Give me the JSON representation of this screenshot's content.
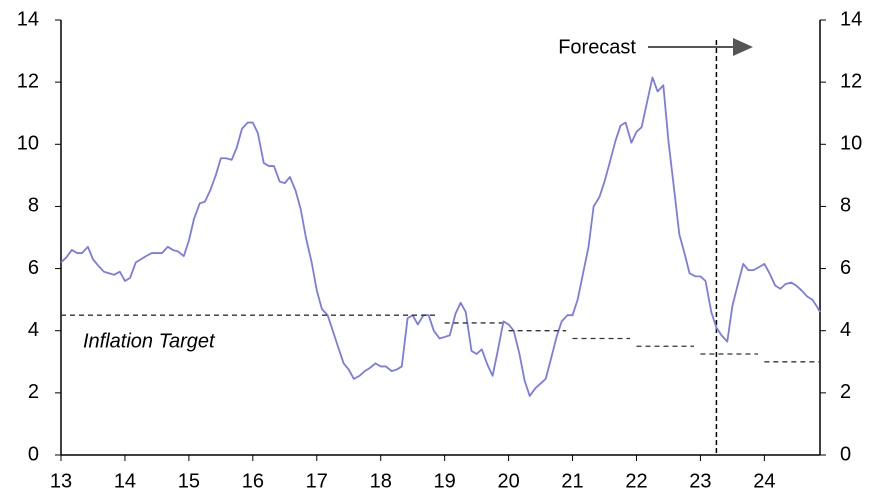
{
  "chart_data": {
    "type": "line",
    "xlim": [
      13,
      24.87
    ],
    "xticks": [
      13,
      14,
      15,
      16,
      17,
      18,
      19,
      20,
      21,
      22,
      23,
      24
    ],
    "ylim": [
      0,
      14
    ],
    "yticks": [
      0,
      2,
      4,
      6,
      8,
      10,
      12,
      14
    ],
    "y2lim": [
      0,
      14
    ],
    "y2ticks": [
      0,
      2,
      4,
      6,
      8,
      10,
      12,
      14
    ],
    "forecast_x": 23.25,
    "forecast_label": "Forecast",
    "series": [
      {
        "color": "#7b7be8",
        "x": [
          13,
          13.08,
          13.17,
          13.25,
          13.33,
          13.42,
          13.5,
          13.58,
          13.67,
          13.75,
          13.83,
          13.92,
          14,
          14.08,
          14.17,
          14.25,
          14.33,
          14.42,
          14.5,
          14.58,
          14.67,
          14.75,
          14.83,
          14.92,
          15,
          15.08,
          15.17,
          15.25,
          15.33,
          15.42,
          15.5,
          15.58,
          15.67,
          15.75,
          15.83,
          15.92,
          16,
          16.08,
          16.17,
          16.25,
          16.33,
          16.42,
          16.5,
          16.58,
          16.67,
          16.75,
          16.83,
          16.92,
          17,
          17.08,
          17.17,
          17.25,
          17.33,
          17.42,
          17.5,
          17.58,
          17.67,
          17.75,
          17.83,
          17.92,
          18,
          18.08,
          18.17,
          18.25,
          18.33,
          18.42,
          18.5,
          18.58,
          18.67,
          18.75,
          18.83,
          18.92,
          19,
          19.08,
          19.17,
          19.25,
          19.33,
          19.42,
          19.5,
          19.58,
          19.67,
          19.75,
          19.83,
          19.92,
          20,
          20.08,
          20.17,
          20.25,
          20.33,
          20.42,
          20.5,
          20.58,
          20.67,
          20.75,
          20.83,
          20.92,
          21,
          21.08,
          21.17,
          21.25,
          21.33,
          21.42,
          21.5,
          21.58,
          21.67,
          21.75,
          21.83,
          21.92,
          22,
          22.08,
          22.17,
          22.25,
          22.33,
          22.42,
          22.5,
          22.58,
          22.67,
          22.75,
          22.83,
          22.92,
          23,
          23.08,
          23.17,
          23.25,
          23.33,
          23.42,
          23.5,
          23.58,
          23.67,
          23.75,
          23.83,
          23.92,
          24,
          24.08,
          24.17,
          24.25,
          24.33,
          24.42,
          24.5,
          24.58,
          24.67,
          24.75,
          24.83,
          24.87
        ],
        "values": [
          6.2,
          6.35,
          6.6,
          6.5,
          6.5,
          6.7,
          6.3,
          6.1,
          5.9,
          5.85,
          5.8,
          5.9,
          5.6,
          5.7,
          6.2,
          6.3,
          6.4,
          6.5,
          6.5,
          6.5,
          6.7,
          6.6,
          6.55,
          6.4,
          6.9,
          7.6,
          8.1,
          8.15,
          8.5,
          9.0,
          9.55,
          9.55,
          9.5,
          9.9,
          10.5,
          10.7,
          10.7,
          10.35,
          9.4,
          9.3,
          9.3,
          8.8,
          8.75,
          8.95,
          8.5,
          7.9,
          7.0,
          6.2,
          5.3,
          4.7,
          4.5,
          4.0,
          3.5,
          2.95,
          2.75,
          2.45,
          2.55,
          2.7,
          2.8,
          2.95,
          2.85,
          2.85,
          2.7,
          2.75,
          2.85,
          4.4,
          4.5,
          4.2,
          4.5,
          4.5,
          4.0,
          3.75,
          3.8,
          3.85,
          4.55,
          4.9,
          4.6,
          3.35,
          3.25,
          3.4,
          2.9,
          2.55,
          3.35,
          4.3,
          4.2,
          4.0,
          3.25,
          2.4,
          1.9,
          2.15,
          2.3,
          2.45,
          3.15,
          3.8,
          4.3,
          4.5,
          4.5,
          5.0,
          5.9,
          6.7,
          8.0,
          8.3,
          8.8,
          9.4,
          10.1,
          10.6,
          10.7,
          10.05,
          10.4,
          10.55,
          11.4,
          12.15,
          11.7,
          11.9,
          10.1,
          8.7,
          7.1,
          6.5,
          5.85,
          5.75,
          5.75,
          5.6,
          4.6,
          4.1,
          3.85,
          3.65,
          4.8,
          5.45,
          6.15,
          5.95,
          5.95,
          6.05,
          6.15,
          5.85,
          5.45,
          5.35,
          5.5,
          5.55,
          5.45,
          5.3,
          5.1,
          5.0,
          4.75,
          4.6
        ]
      },
      {
        "name": "Inflation Target",
        "color": "#333333",
        "dashed": true,
        "x": [
          13,
          18.88,
          18.94,
          19,
          19.9,
          19.95,
          20,
          20.9,
          20.95,
          21,
          21.9,
          21.95,
          22,
          22.9,
          22.95,
          23,
          23.9,
          23.95,
          24,
          24.87
        ],
        "values": [
          4.5,
          4.5,
          null,
          4.25,
          4.25,
          null,
          4.0,
          4.0,
          null,
          3.75,
          3.75,
          null,
          3.5,
          3.5,
          null,
          3.25,
          3.25,
          null,
          3.0,
          3.0
        ]
      }
    ]
  }
}
